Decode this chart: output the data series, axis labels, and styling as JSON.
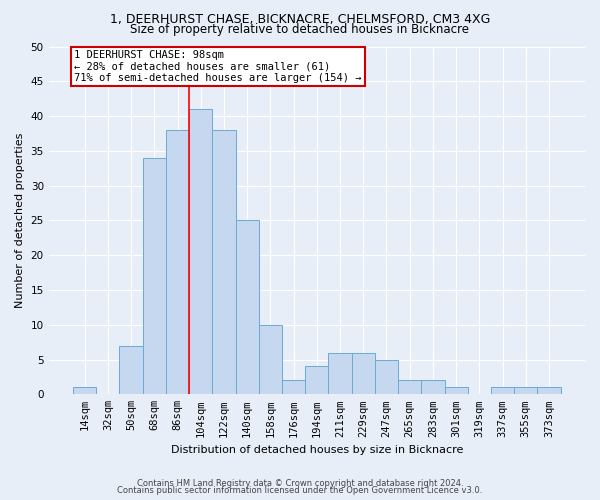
{
  "title1": "1, DEERHURST CHASE, BICKNACRE, CHELMSFORD, CM3 4XG",
  "title2": "Size of property relative to detached houses in Bicknacre",
  "xlabel": "Distribution of detached houses by size in Bicknacre",
  "ylabel": "Number of detached properties",
  "footer1": "Contains HM Land Registry data © Crown copyright and database right 2024.",
  "footer2": "Contains public sector information licensed under the Open Government Licence v3.0.",
  "bar_labels": [
    "14sqm",
    "32sqm",
    "50sqm",
    "68sqm",
    "86sqm",
    "104sqm",
    "122sqm",
    "140sqm",
    "158sqm",
    "176sqm",
    "194sqm",
    "211sqm",
    "229sqm",
    "247sqm",
    "265sqm",
    "283sqm",
    "301sqm",
    "319sqm",
    "337sqm",
    "355sqm",
    "373sqm"
  ],
  "bar_values": [
    1,
    0,
    7,
    34,
    38,
    41,
    38,
    25,
    10,
    2,
    4,
    6,
    6,
    5,
    2,
    2,
    1,
    0,
    1,
    1,
    1
  ],
  "bar_color": "#c5d8f0",
  "bar_edgecolor": "#6aaad4",
  "bg_color": "#e8eef8",
  "grid_color": "#ffffff",
  "vline_x": 4.5,
  "annotation_text": "1 DEERHURST CHASE: 98sqm\n← 28% of detached houses are smaller (61)\n71% of semi-detached houses are larger (154) →",
  "annotation_box_color": "#ffffff",
  "annotation_box_edgecolor": "#cc0000",
  "ylim": [
    0,
    50
  ],
  "yticks": [
    0,
    5,
    10,
    15,
    20,
    25,
    30,
    35,
    40,
    45,
    50
  ],
  "title1_fontsize": 9,
  "title2_fontsize": 8.5,
  "ylabel_fontsize": 8,
  "xlabel_fontsize": 8,
  "tick_fontsize": 7.5,
  "ann_fontsize": 7.5
}
